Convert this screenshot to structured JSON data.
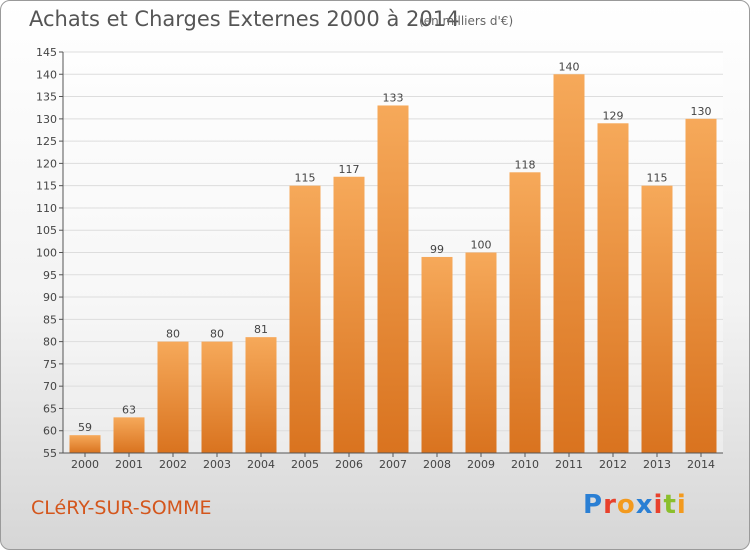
{
  "header": {
    "title": "Achats et Charges Externes 2000 à 2014",
    "subtitle": "(en milliers d'€)"
  },
  "footer": {
    "place": "CLéRY-SUR-SOMME",
    "brand_letters": [
      "P",
      "r",
      "o",
      "x",
      "i",
      "t",
      "i"
    ],
    "brand_colors": [
      "#2a7fd4",
      "#e8412c",
      "#f39a1e",
      "#2a7fd4",
      "#e8412c",
      "#8bbf2c",
      "#f39a1e"
    ]
  },
  "chart_data": {
    "type": "bar",
    "title": "Achats et Charges Externes 2000 à 2014",
    "categories": [
      "2000",
      "2001",
      "2002",
      "2003",
      "2004",
      "2005",
      "2006",
      "2007",
      "2008",
      "2009",
      "2010",
      "2011",
      "2012",
      "2013",
      "2014"
    ],
    "values": [
      59,
      63,
      80,
      80,
      81,
      115,
      117,
      133,
      99,
      100,
      118,
      140,
      129,
      115,
      130
    ],
    "ylim": [
      55,
      145
    ],
    "yticks": [
      55,
      60,
      65,
      70,
      75,
      80,
      85,
      90,
      95,
      100,
      105,
      110,
      115,
      120,
      125,
      130,
      135,
      140,
      145
    ],
    "grid": true,
    "colors": {
      "bar_light": "#f6a95a",
      "bar_dark": "#d9731f",
      "grid": "#dddddd",
      "axis": "#555555",
      "label": "#444444"
    }
  }
}
